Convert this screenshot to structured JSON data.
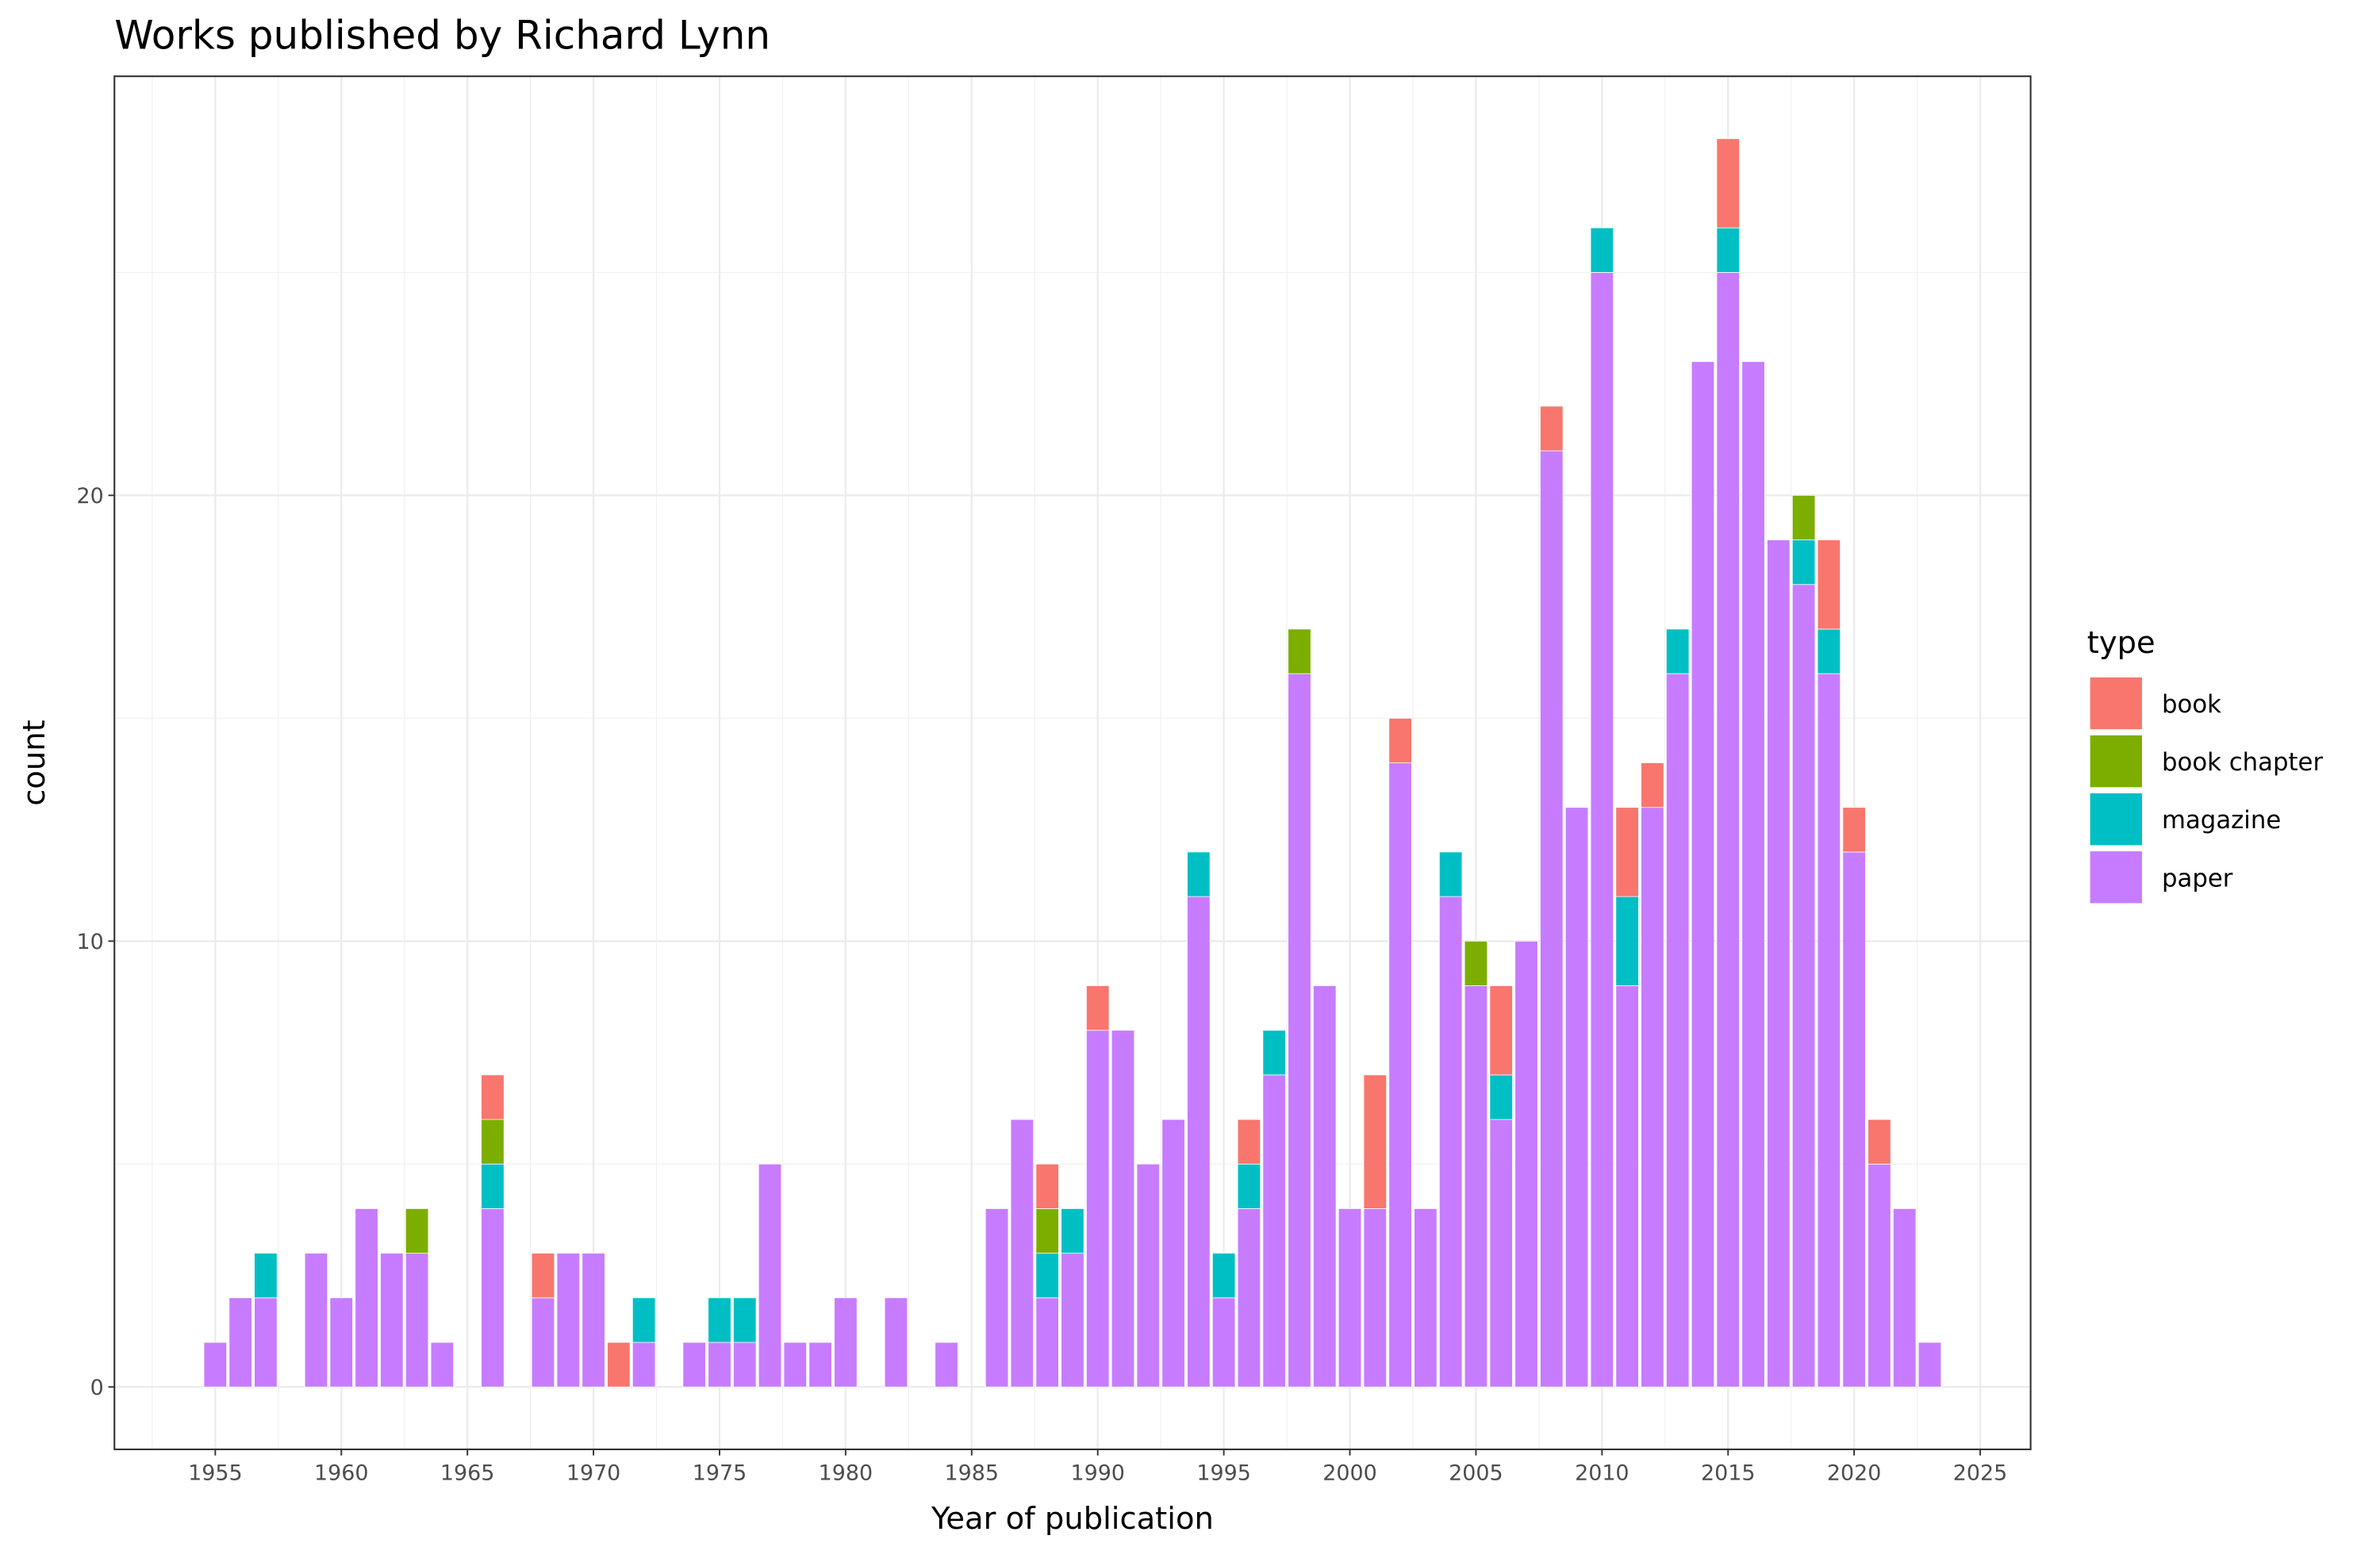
{
  "chart_data": {
    "type": "bar",
    "stacked": true,
    "title": "Works published by Richard Lynn",
    "xlabel": "Year of publication",
    "ylabel": "count",
    "xlim": [
      1951,
      2027
    ],
    "ylim": [
      -1.4,
      29.4
    ],
    "x_ticks": [
      1955,
      1960,
      1965,
      1970,
      1975,
      1980,
      1985,
      1990,
      1995,
      2000,
      2005,
      2010,
      2015,
      2020,
      2025
    ],
    "y_ticks": [
      0,
      10,
      20
    ],
    "grid": true,
    "legend": {
      "title": "type",
      "position": "right"
    },
    "series_order_top_to_bottom": [
      "book",
      "book chapter",
      "magazine",
      "paper"
    ],
    "colors": {
      "book": "#F8766D",
      "book chapter": "#7CAE00",
      "magazine": "#00BFC4",
      "paper": "#C77CFF"
    },
    "x": [
      1955,
      1956,
      1957,
      1958,
      1959,
      1960,
      1961,
      1962,
      1963,
      1964,
      1965,
      1966,
      1967,
      1968,
      1969,
      1970,
      1971,
      1972,
      1973,
      1974,
      1975,
      1976,
      1977,
      1978,
      1979,
      1980,
      1981,
      1982,
      1983,
      1984,
      1985,
      1986,
      1987,
      1988,
      1989,
      1990,
      1991,
      1992,
      1993,
      1994,
      1995,
      1996,
      1997,
      1998,
      1999,
      2000,
      2001,
      2002,
      2003,
      2004,
      2005,
      2006,
      2007,
      2008,
      2009,
      2010,
      2011,
      2012,
      2013,
      2014,
      2015,
      2016,
      2017,
      2018,
      2019,
      2020,
      2021,
      2022,
      2023
    ],
    "series": [
      {
        "name": "paper",
        "values": [
          1,
          2,
          2,
          0,
          3,
          2,
          4,
          3,
          3,
          1,
          0,
          4,
          0,
          2,
          3,
          3,
          0,
          1,
          0,
          1,
          1,
          1,
          5,
          1,
          1,
          2,
          0,
          2,
          0,
          1,
          0,
          4,
          6,
          2,
          3,
          8,
          8,
          5,
          6,
          11,
          2,
          4,
          7,
          16,
          9,
          4,
          4,
          14,
          4,
          11,
          9,
          6,
          10,
          21,
          13,
          25,
          9,
          13,
          16,
          23,
          25,
          23,
          19,
          18,
          16,
          12,
          5,
          4,
          1
        ]
      },
      {
        "name": "magazine",
        "values": [
          0,
          0,
          1,
          0,
          0,
          0,
          0,
          0,
          0,
          0,
          0,
          1,
          0,
          0,
          0,
          0,
          0,
          1,
          0,
          0,
          1,
          1,
          0,
          0,
          0,
          0,
          0,
          0,
          0,
          0,
          0,
          0,
          0,
          1,
          1,
          0,
          0,
          0,
          0,
          1,
          1,
          1,
          1,
          0,
          0,
          0,
          0,
          0,
          0,
          1,
          0,
          1,
          0,
          0,
          0,
          1,
          2,
          0,
          1,
          0,
          1,
          0,
          0,
          1,
          1,
          0,
          0,
          0,
          0
        ]
      },
      {
        "name": "book chapter",
        "values": [
          0,
          0,
          0,
          0,
          0,
          0,
          0,
          0,
          1,
          0,
          0,
          1,
          0,
          0,
          0,
          0,
          0,
          0,
          0,
          0,
          0,
          0,
          0,
          0,
          0,
          0,
          0,
          0,
          0,
          0,
          0,
          0,
          0,
          1,
          0,
          0,
          0,
          0,
          0,
          0,
          0,
          0,
          0,
          1,
          0,
          0,
          0,
          0,
          0,
          0,
          1,
          0,
          0,
          0,
          0,
          0,
          0,
          0,
          0,
          0,
          0,
          0,
          0,
          1,
          0,
          0,
          0,
          0,
          0
        ]
      },
      {
        "name": "book",
        "values": [
          0,
          0,
          0,
          0,
          0,
          0,
          0,
          0,
          0,
          0,
          0,
          1,
          0,
          1,
          0,
          0,
          1,
          0,
          0,
          0,
          0,
          0,
          0,
          0,
          0,
          0,
          0,
          0,
          0,
          0,
          0,
          0,
          0,
          1,
          0,
          1,
          0,
          0,
          0,
          0,
          0,
          1,
          0,
          0,
          0,
          0,
          3,
          1,
          0,
          0,
          0,
          2,
          0,
          1,
          0,
          0,
          2,
          1,
          0,
          0,
          2,
          0,
          0,
          0,
          2,
          1,
          1,
          0,
          0
        ]
      }
    ]
  }
}
